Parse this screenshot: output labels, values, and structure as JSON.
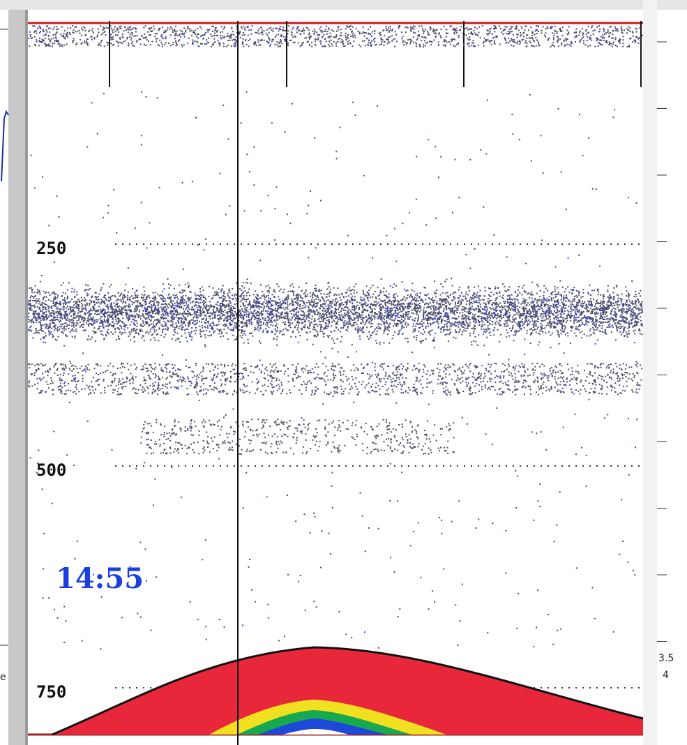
{
  "echogram": {
    "depth_labels": [
      "250",
      "500",
      "750"
    ],
    "time_label": "14:55",
    "right_labels": [
      "3.5",
      "4"
    ],
    "left_label": "e"
  }
}
